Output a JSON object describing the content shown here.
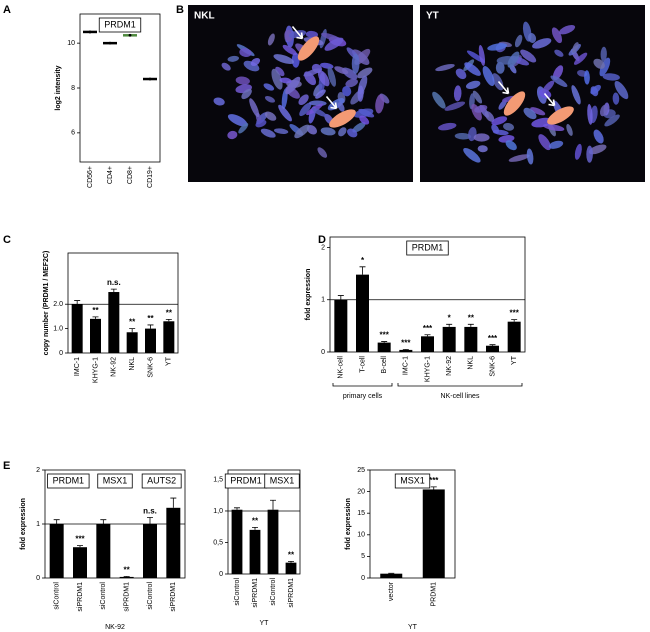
{
  "chart_data": [
    {
      "type": "dot",
      "panel": "A",
      "title": "PRDM1",
      "ylabel": "log2 intensity",
      "categories": [
        "CD56+",
        "CD4+",
        "CD8+",
        "CD19+"
      ],
      "values": [
        10.5,
        10.0,
        10.35,
        8.4
      ],
      "colors": [
        "#000000",
        "#000000",
        "#4e8a3e",
        "#000000"
      ],
      "ylim": [
        4.7,
        11.3
      ],
      "yticks": [
        6,
        8,
        10
      ]
    },
    {
      "type": "image",
      "panel": "B",
      "labels": [
        "NKL",
        "YT"
      ]
    },
    {
      "type": "bar",
      "panel": "C",
      "ylabel": "copy number (PRDM1 / MEF2C)",
      "categories": [
        "IMC-1",
        "KHYG-1",
        "NK-92",
        "NKL",
        "SNK-6",
        "YT"
      ],
      "values": [
        2.0,
        1.4,
        2.5,
        0.85,
        1.0,
        1.3
      ],
      "errors": [
        0.15,
        0.08,
        0.12,
        0.15,
        0.15,
        0.08
      ],
      "significance": [
        null,
        "**",
        "n.s.",
        "**",
        "**",
        "**"
      ],
      "ylim": [
        0,
        4.1
      ],
      "yticks": [
        0,
        {
          "value": 1,
          "label": "1.0"
        },
        {
          "value": 2,
          "label": "2.0"
        }
      ],
      "reference_line": 2
    },
    {
      "type": "bar",
      "panel": "D",
      "title": "PRDM1",
      "ylabel": "fold expression",
      "categories": [
        "NK-cell",
        "T-cell",
        "B-cell",
        "IMC-1",
        "KHYG-1",
        "NK-92",
        "NKL",
        "SNK-6",
        "YT"
      ],
      "values": [
        1.0,
        1.48,
        0.18,
        0.04,
        0.3,
        0.48,
        0.48,
        0.12,
        0.58
      ],
      "errors": [
        0.08,
        0.15,
        0.02,
        0.01,
        0.03,
        0.05,
        0.05,
        0.02,
        0.04
      ],
      "significance": [
        null,
        "*",
        "***",
        "***",
        "***",
        "*",
        "**",
        "***",
        "***"
      ],
      "groups": [
        {
          "label": "primary cells",
          "count": 3
        },
        {
          "label": "NK-cell lines",
          "count": 6
        }
      ],
      "ylim": [
        0,
        2.2
      ],
      "yticks": [
        0,
        1,
        2
      ],
      "reference_line": 1
    },
    {
      "type": "bar",
      "panel": "E",
      "titles": [
        "PRDM1",
        "MSX1",
        "AUTS2"
      ],
      "ylabel": "fold expression",
      "xlabel": "NK-92",
      "categories": [
        "siControl",
        "siPRDM1",
        "siControl",
        "siPRDM1",
        "siControl",
        "siPRDM1"
      ],
      "values": [
        1.0,
        0.57,
        1.0,
        0.02,
        1.0,
        1.3
      ],
      "errors": [
        0.08,
        0.03,
        0.08,
        0.01,
        0.12,
        0.18
      ],
      "significance": [
        null,
        "***",
        null,
        "**",
        "n.s.",
        null
      ],
      "ylim": [
        0,
        2
      ],
      "yticks": [
        0,
        1,
        2
      ],
      "reference_line": 1
    },
    {
      "type": "bar",
      "titles": [
        "PRDM1",
        "MSX1"
      ],
      "xlabel": "YT",
      "categories": [
        "siControl",
        "siPRDM1",
        "siControl",
        "siPRDM1"
      ],
      "values": [
        1.02,
        0.7,
        1.02,
        0.18
      ],
      "errors": [
        0.03,
        0.04,
        0.15,
        0.02
      ],
      "significance": [
        null,
        "**",
        null,
        "**"
      ],
      "ylim": [
        0,
        1.65
      ],
      "yticks": [
        0,
        {
          "value": 0.5,
          "label": "0,5"
        },
        {
          "value": 1,
          "label": "1,0"
        },
        {
          "value": 1.5,
          "label": "1,5"
        }
      ],
      "reference_line": 1
    },
    {
      "type": "bar",
      "title": "MSX1",
      "ylabel": "fold expression",
      "xlabel": "YT",
      "categories": [
        "vector",
        "PRDM1"
      ],
      "values": [
        1.0,
        20.5
      ],
      "errors": [
        0.1,
        0.6
      ],
      "significance": [
        null,
        "***"
      ],
      "ylim": [
        0,
        25
      ],
      "yticks": [
        0,
        5,
        10,
        15,
        20,
        25
      ]
    }
  ]
}
